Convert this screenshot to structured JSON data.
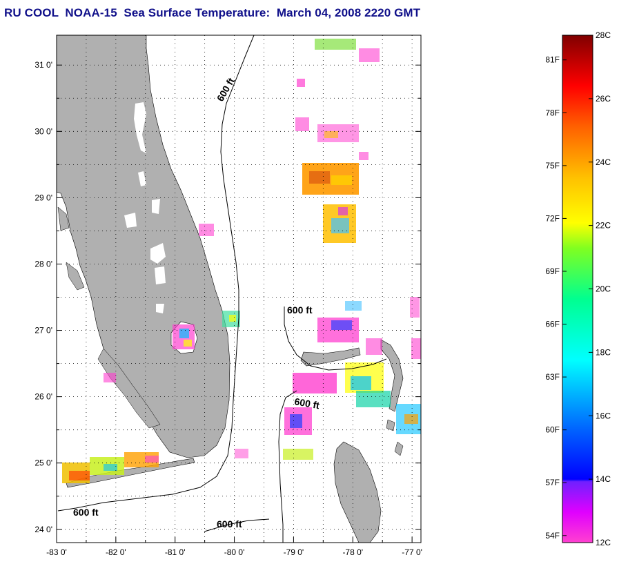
{
  "title": "RU COOL  NOAA-15  Sea Surface Temperature:  March 04, 2008 2220 GMT",
  "map": {
    "lat_labels": [
      "31 0'",
      "30 0'",
      "29 0'",
      "28 0'",
      "27 0'",
      "26 0'",
      "25 0'",
      "24 0'"
    ],
    "lon_labels": [
      "-83 0'",
      "-82 0'",
      "-81 0'",
      "-80 0'",
      "-79 0'",
      "-78 0'",
      "-77 0'"
    ],
    "lat_range": [
      23.8,
      31.45
    ],
    "lon_range": [
      -83.0,
      -76.85
    ],
    "land_color": "#b0b0b0",
    "contour_labels": [
      "600 ft",
      "600 ft",
      "600 ft",
      "600 ft",
      "600 ft"
    ]
  },
  "colorbar": {
    "celsius_labels": [
      "28C",
      "26C",
      "24C",
      "22C",
      "20C",
      "18C",
      "16C",
      "14C",
      "12C"
    ],
    "fahrenheit_labels": [
      "81F",
      "78F",
      "75F",
      "72F",
      "69F",
      "66F",
      "63F",
      "60F",
      "57F",
      "54F"
    ],
    "celsius_range": [
      12,
      28
    ],
    "colors": [
      "#ff00ff",
      "#9020ff",
      "#0000ff",
      "#00a0ff",
      "#00ffff",
      "#00ff80",
      "#80ff00",
      "#ffff00",
      "#ffc000",
      "#ff8000",
      "#ff0000",
      "#a00000",
      "#700000"
    ]
  }
}
